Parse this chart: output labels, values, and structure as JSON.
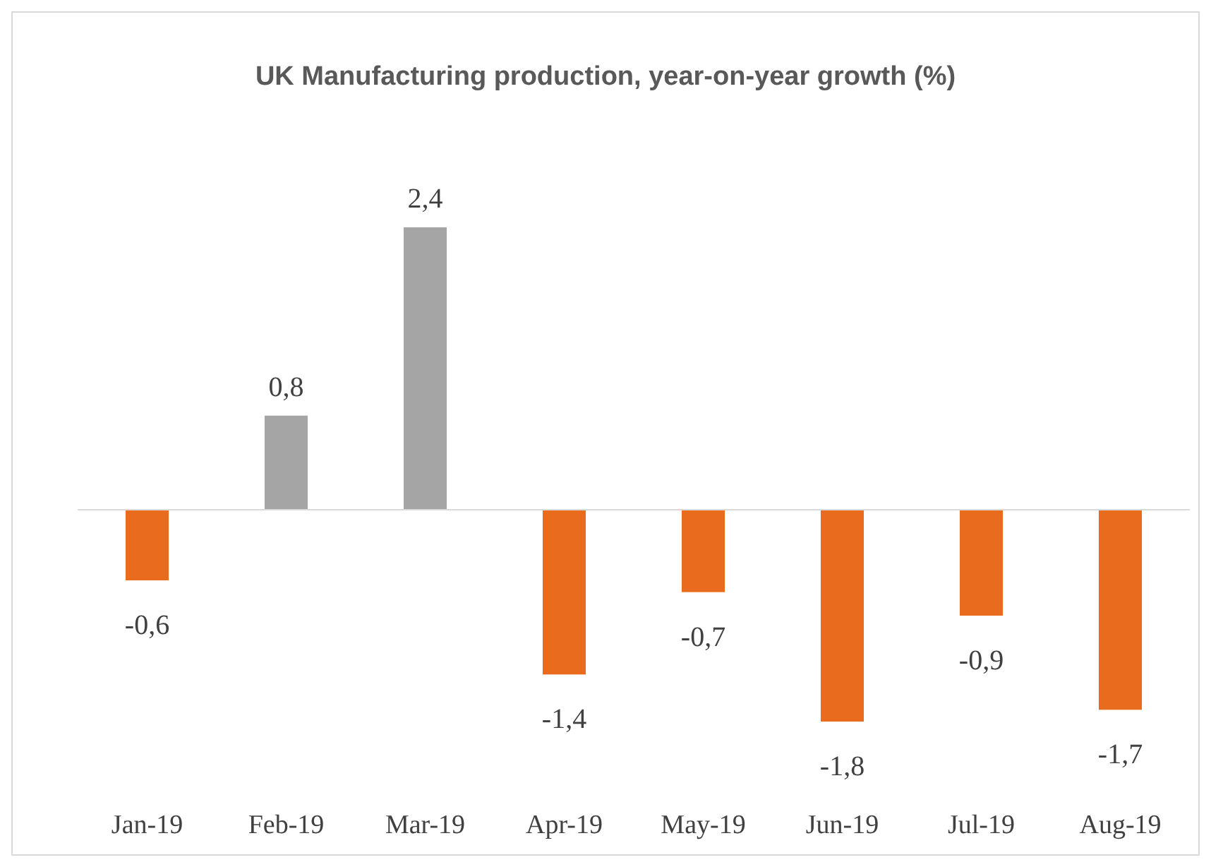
{
  "chart_data": {
    "type": "bar",
    "title": "UK  Manufacturing production, year-on-year growth (%)",
    "categories": [
      "Jan-19",
      "Feb-19",
      "Mar-19",
      "Apr-19",
      "May-19",
      "Jun-19",
      "Jul-19",
      "Aug-19"
    ],
    "values": [
      -0.6,
      0.8,
      2.4,
      -1.4,
      -0.7,
      -1.8,
      -0.9,
      -1.7
    ],
    "value_labels": [
      "-0,6",
      "0,8",
      "2,4",
      "-1,4",
      "-0,7",
      "-1,8",
      "-0,9",
      "-1,7"
    ],
    "colors": [
      "#e96c1e",
      "#a5a5a5",
      "#a5a5a5",
      "#e96c1e",
      "#e96c1e",
      "#e96c1e",
      "#e96c1e",
      "#e96c1e"
    ]
  }
}
